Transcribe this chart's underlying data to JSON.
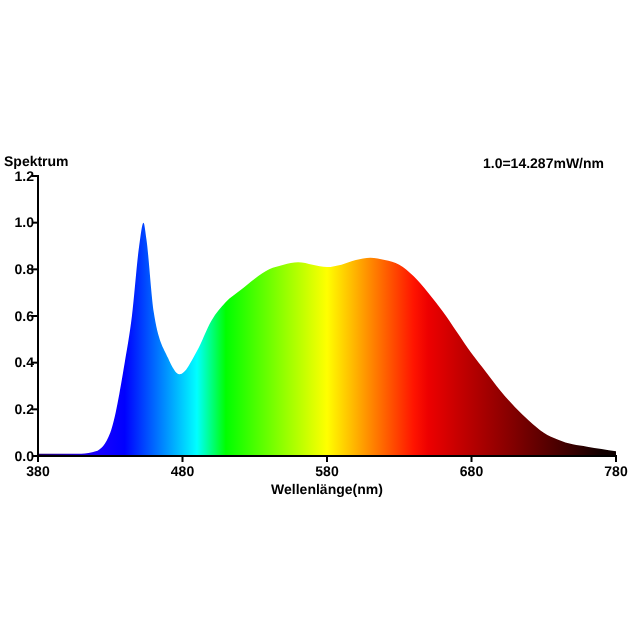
{
  "chart_data": {
    "type": "area",
    "title": "Spektrum",
    "xlabel": "Wellenlänge(nm)",
    "annotations": [
      "1.0=14.287mW/nm"
    ],
    "x": [
      380,
      400,
      410,
      420,
      430,
      440,
      445,
      450,
      453,
      455,
      460,
      470,
      478,
      490,
      500,
      510,
      520,
      530,
      540,
      550,
      560,
      570,
      580,
      590,
      600,
      610,
      620,
      630,
      640,
      650,
      660,
      670,
      680,
      690,
      700,
      710,
      720,
      730,
      740,
      750,
      760,
      770,
      780
    ],
    "series": [
      {
        "values": [
          0.01,
          0.01,
          0.01,
          0.02,
          0.1,
          0.4,
          0.6,
          0.9,
          1.0,
          0.93,
          0.62,
          0.42,
          0.35,
          0.45,
          0.58,
          0.66,
          0.71,
          0.76,
          0.8,
          0.82,
          0.83,
          0.82,
          0.81,
          0.82,
          0.84,
          0.85,
          0.84,
          0.82,
          0.77,
          0.7,
          0.62,
          0.53,
          0.44,
          0.36,
          0.28,
          0.21,
          0.15,
          0.1,
          0.07,
          0.05,
          0.04,
          0.03,
          0.02
        ]
      }
    ],
    "xlim": [
      380,
      780
    ],
    "xticks": [
      380,
      480,
      580,
      680,
      780
    ],
    "ylim": [
      0,
      1.2
    ],
    "yticks": [
      {
        "value": 0,
        "label": "0.0"
      },
      0.2,
      0.4,
      0.6,
      0.8,
      {
        "value": 1,
        "label": "1.0"
      },
      1.2
    ],
    "grid": false
  }
}
